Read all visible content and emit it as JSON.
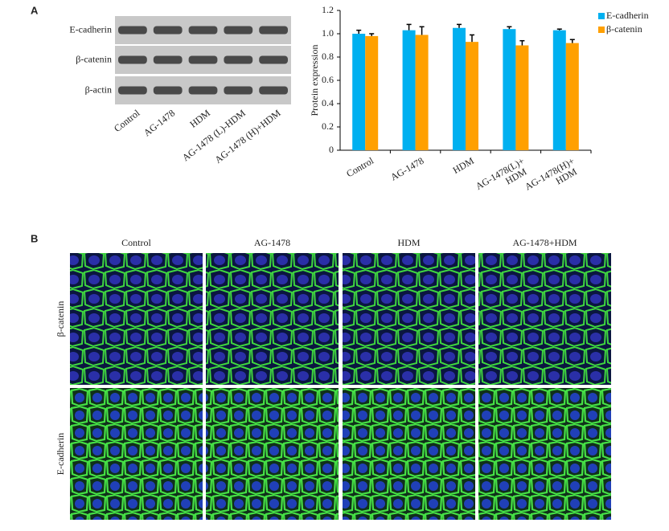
{
  "panel_a": {
    "label": "A",
    "blot": {
      "rows": [
        "E-cadherin",
        "β-catenin",
        "β-actin"
      ],
      "lanes": [
        "Control",
        "AG-1478",
        "HDM",
        "AG-1478 (L)-HDM",
        "AG-1478 (H)+HDM"
      ]
    }
  },
  "chart_data": {
    "type": "bar",
    "y_label": "Protein expression",
    "categories": [
      "Control",
      "AG-1478",
      "HDM",
      "AG-1478(L)+ HDM",
      "AG-1478(H)+ HDM"
    ],
    "series": [
      {
        "name": "E-cadherin",
        "color": "#00b0f0",
        "values": [
          1.0,
          1.03,
          1.05,
          1.04,
          1.03
        ],
        "errors": [
          0.03,
          0.05,
          0.03,
          0.02,
          0.01
        ]
      },
      {
        "name": "β-catenin",
        "color": "#ffa000",
        "values": [
          0.98,
          0.99,
          0.93,
          0.9,
          0.92
        ],
        "errors": [
          0.02,
          0.07,
          0.06,
          0.04,
          0.03
        ]
      }
    ],
    "ylim": [
      0,
      1.2
    ],
    "yticks": [
      0,
      0.2,
      0.4,
      0.6,
      0.8,
      {
        "value": 1,
        "label": "1.0"
      },
      1.2
    ],
    "grid": false,
    "legend": "top-right"
  },
  "panel_b": {
    "label": "B",
    "columns": [
      "Control",
      "AG-1478",
      "HDM",
      "AG-1478+HDM"
    ],
    "rows": [
      "β-catenin",
      "E-cadherin"
    ]
  }
}
